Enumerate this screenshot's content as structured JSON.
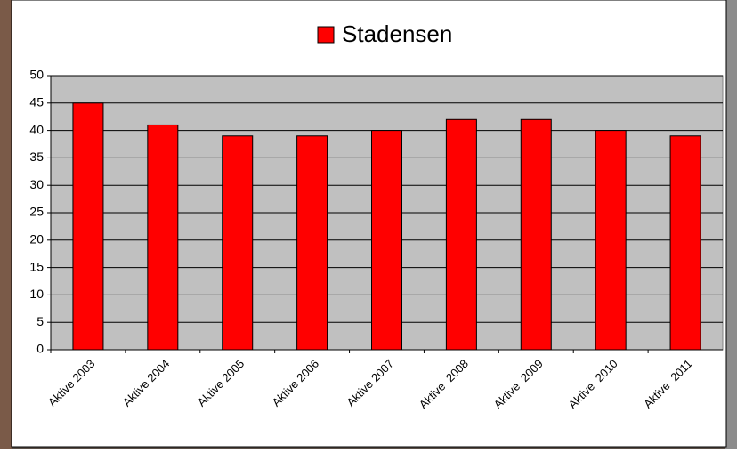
{
  "chart_data": {
    "type": "bar",
    "categories": [
      "Aktive 2003",
      "Aktive 2004",
      "Aktive 2005",
      "Aktive 2006",
      "Aktive 2007",
      "Aktive  2008",
      "Aktive  2009",
      "Aktive  2010",
      "Aktive  2011"
    ],
    "series": [
      {
        "name": "Stadensen",
        "color": "#ff0000",
        "values": [
          45,
          41,
          39,
          39,
          40,
          42,
          42,
          40,
          39
        ]
      }
    ],
    "ylim": [
      0,
      50
    ],
    "yticks": [
      0,
      5,
      10,
      15,
      20,
      25,
      30,
      35,
      40,
      45,
      50
    ],
    "grid": true,
    "legend": "top"
  }
}
